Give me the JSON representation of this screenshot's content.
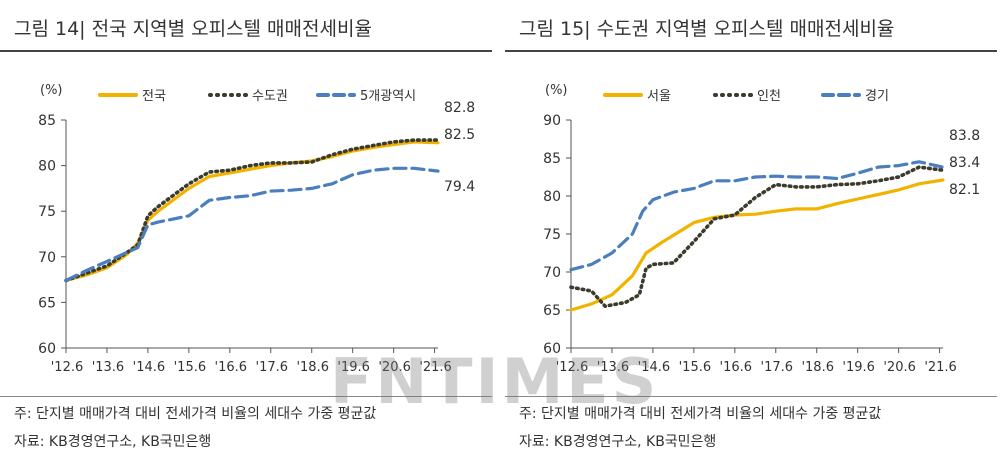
{
  "watermark": "FNTIMES",
  "charts": [
    {
      "figure_title": "그림 14| 전국 지역별 오피스텔 매매전세비율",
      "note": "주: 단지별 매매가격 대비 전세가격 비율의 세대수 가중 평균값",
      "source": "자료: KB경영연구소, KB국민은행"
    },
    {
      "figure_title": "그림 15| 수도권 지역별 오피스텔 매매전세비율",
      "note": "주: 단지별 매매가격 대비 전세가격 비율의 세대수 가중 평균값",
      "source": "자료: KB경영연구소, KB국민은행"
    }
  ],
  "chart_data": [
    {
      "type": "line",
      "title": "그림 14| 전국 지역별 오피스텔 매매전세비율",
      "unit_label": "(%)",
      "ylim": [
        60,
        85
      ],
      "yticks": [
        60,
        65,
        70,
        75,
        80,
        85
      ],
      "x_tick_labels": [
        "'12.6",
        "'13.6",
        "'14.6",
        "'15.6",
        "'16.6",
        "'17.6",
        "'18.6",
        "'19.6",
        "'20.6",
        "'21.6"
      ],
      "x_range_months": [
        0,
        109
      ],
      "grid": false,
      "legend_position": "top",
      "series": [
        {
          "name": "전국",
          "color": "#F2B300",
          "style": "solid",
          "points": [
            [
              0,
              67.4
            ],
            [
              6,
              68.0
            ],
            [
              12,
              68.8
            ],
            [
              18,
              70.3
            ],
            [
              21,
              71.5
            ],
            [
              24,
              74.0
            ],
            [
              27,
              75.0
            ],
            [
              36,
              77.5
            ],
            [
              42,
              78.8
            ],
            [
              48,
              79.2
            ],
            [
              54,
              79.6
            ],
            [
              60,
              80.0
            ],
            [
              66,
              80.3
            ],
            [
              72,
              80.5
            ],
            [
              78,
              81.0
            ],
            [
              84,
              81.6
            ],
            [
              90,
              82.0
            ],
            [
              96,
              82.3
            ],
            [
              102,
              82.6
            ],
            [
              109,
              82.5
            ]
          ],
          "end_label": "82.5"
        },
        {
          "name": "수도권",
          "color": "#3B3A2C",
          "style": "dotted",
          "points": [
            [
              0,
              67.4
            ],
            [
              6,
              68.2
            ],
            [
              12,
              69.0
            ],
            [
              18,
              70.5
            ],
            [
              21,
              71.3
            ],
            [
              24,
              74.5
            ],
            [
              27,
              75.5
            ],
            [
              36,
              78.0
            ],
            [
              42,
              79.3
            ],
            [
              48,
              79.5
            ],
            [
              54,
              80.0
            ],
            [
              60,
              80.3
            ],
            [
              66,
              80.3
            ],
            [
              72,
              80.4
            ],
            [
              78,
              81.2
            ],
            [
              84,
              81.8
            ],
            [
              90,
              82.2
            ],
            [
              96,
              82.6
            ],
            [
              102,
              82.8
            ],
            [
              109,
              82.8
            ]
          ],
          "end_label": "82.8"
        },
        {
          "name": "5개광역시",
          "color": "#4A7EBF",
          "style": "dashed",
          "points": [
            [
              0,
              67.4
            ],
            [
              6,
              68.5
            ],
            [
              12,
              69.5
            ],
            [
              18,
              70.5
            ],
            [
              21,
              71.0
            ],
            [
              24,
              73.5
            ],
            [
              27,
              73.8
            ],
            [
              36,
              74.5
            ],
            [
              42,
              76.2
            ],
            [
              48,
              76.5
            ],
            [
              54,
              76.7
            ],
            [
              60,
              77.2
            ],
            [
              66,
              77.3
            ],
            [
              72,
              77.5
            ],
            [
              78,
              78.0
            ],
            [
              84,
              79.0
            ],
            [
              90,
              79.5
            ],
            [
              96,
              79.7
            ],
            [
              102,
              79.7
            ],
            [
              109,
              79.4
            ]
          ],
          "end_label": "79.4"
        }
      ]
    },
    {
      "type": "line",
      "title": "그림 15| 수도권 지역별 오피스텔 매매전세비율",
      "unit_label": "(%)",
      "ylim": [
        60,
        90
      ],
      "yticks": [
        60,
        65,
        70,
        75,
        80,
        85,
        90
      ],
      "x_tick_labels": [
        "'12.6",
        "'13.6",
        "'14.6",
        "'15.6",
        "'16.6",
        "'17.6",
        "'18.6",
        "'19.6",
        "'20.6",
        "'21.6"
      ],
      "x_range_months": [
        0,
        109
      ],
      "grid": false,
      "legend_position": "top",
      "series": [
        {
          "name": "서울",
          "color": "#F2B300",
          "style": "solid",
          "points": [
            [
              0,
              65.0
            ],
            [
              6,
              65.8
            ],
            [
              12,
              67.0
            ],
            [
              18,
              69.5
            ],
            [
              22,
              72.5
            ],
            [
              27,
              74.0
            ],
            [
              36,
              76.5
            ],
            [
              42,
              77.2
            ],
            [
              48,
              77.5
            ],
            [
              54,
              77.6
            ],
            [
              60,
              78.0
            ],
            [
              66,
              78.3
            ],
            [
              72,
              78.3
            ],
            [
              78,
              79.0
            ],
            [
              84,
              79.6
            ],
            [
              90,
              80.2
            ],
            [
              96,
              80.8
            ],
            [
              102,
              81.6
            ],
            [
              109,
              82.1
            ]
          ],
          "end_label": "82.1"
        },
        {
          "name": "인천",
          "color": "#3B3A2C",
          "style": "dotted",
          "points": [
            [
              0,
              68.0
            ],
            [
              6,
              67.5
            ],
            [
              10,
              65.5
            ],
            [
              16,
              66.0
            ],
            [
              20,
              67.0
            ],
            [
              22,
              70.5
            ],
            [
              24,
              71.0
            ],
            [
              30,
              71.2
            ],
            [
              36,
              74.0
            ],
            [
              42,
              77.0
            ],
            [
              48,
              77.5
            ],
            [
              54,
              79.8
            ],
            [
              60,
              81.5
            ],
            [
              66,
              81.2
            ],
            [
              72,
              81.2
            ],
            [
              78,
              81.5
            ],
            [
              84,
              81.6
            ],
            [
              90,
              82.0
            ],
            [
              96,
              82.5
            ],
            [
              102,
              83.8
            ],
            [
              109,
              83.4
            ]
          ],
          "end_label": "83.4"
        },
        {
          "name": "경기",
          "color": "#4A7EBF",
          "style": "dashed",
          "points": [
            [
              0,
              70.3
            ],
            [
              6,
              71.0
            ],
            [
              12,
              72.5
            ],
            [
              18,
              75.0
            ],
            [
              21,
              78.0
            ],
            [
              24,
              79.5
            ],
            [
              30,
              80.5
            ],
            [
              36,
              81.0
            ],
            [
              42,
              82.0
            ],
            [
              48,
              82.0
            ],
            [
              54,
              82.5
            ],
            [
              60,
              82.6
            ],
            [
              66,
              82.5
            ],
            [
              72,
              82.5
            ],
            [
              78,
              82.3
            ],
            [
              84,
              83.0
            ],
            [
              90,
              83.8
            ],
            [
              96,
              84.0
            ],
            [
              102,
              84.5
            ],
            [
              109,
              83.8
            ]
          ],
          "end_label": "83.8"
        }
      ]
    }
  ]
}
